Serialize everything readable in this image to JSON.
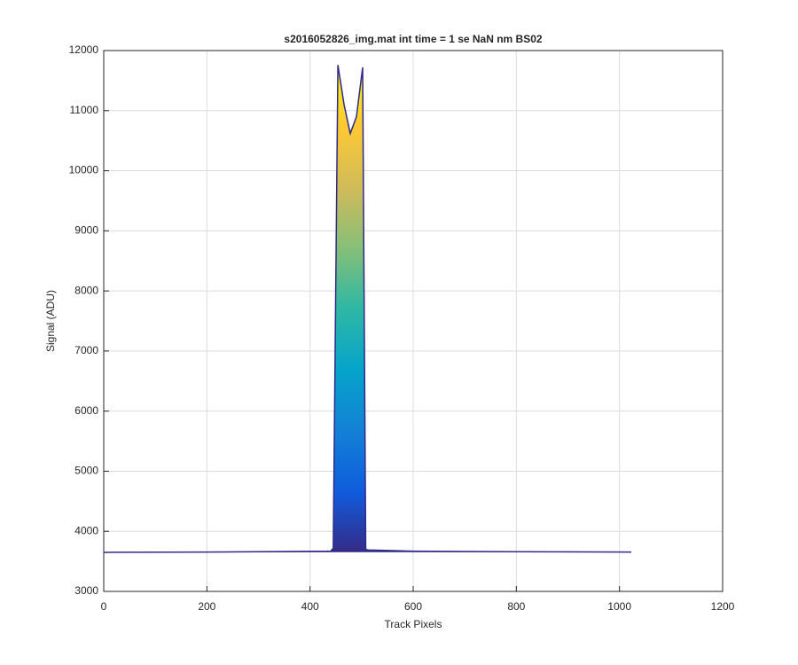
{
  "chart_data": {
    "type": "line",
    "title": "s2016052826_img.mat int time = 1 se  NaN nm BS02",
    "x_label": "Track Pixels",
    "y_label": "Signal (ADU)",
    "x": [
      0,
      200,
      440,
      445,
      454,
      466,
      478,
      490,
      502,
      508,
      512,
      600,
      800,
      1023
    ],
    "series": [
      {
        "values": [
          3650,
          3655,
          3670,
          3720,
          11760,
          11100,
          10620,
          10900,
          11720,
          3700,
          3690,
          3670,
          3660,
          3655
        ],
        "color": "#2e2a87"
      }
    ],
    "colormap": [
      "#352a87",
      "#0f5cdd",
      "#1481d6",
      "#06a4ca",
      "#2eb7a4",
      "#87bf77",
      "#d1bb59",
      "#fec832",
      "#f9fb0e"
    ],
    "xlim": [
      0,
      1200
    ],
    "xticks": [
      0,
      200,
      400,
      600,
      800,
      1000,
      1200
    ],
    "ylim": [
      3000,
      12000
    ],
    "yticks": [
      3000,
      4000,
      5000,
      6000,
      7000,
      8000,
      9000,
      10000,
      11000,
      12000
    ],
    "grid": true
  }
}
